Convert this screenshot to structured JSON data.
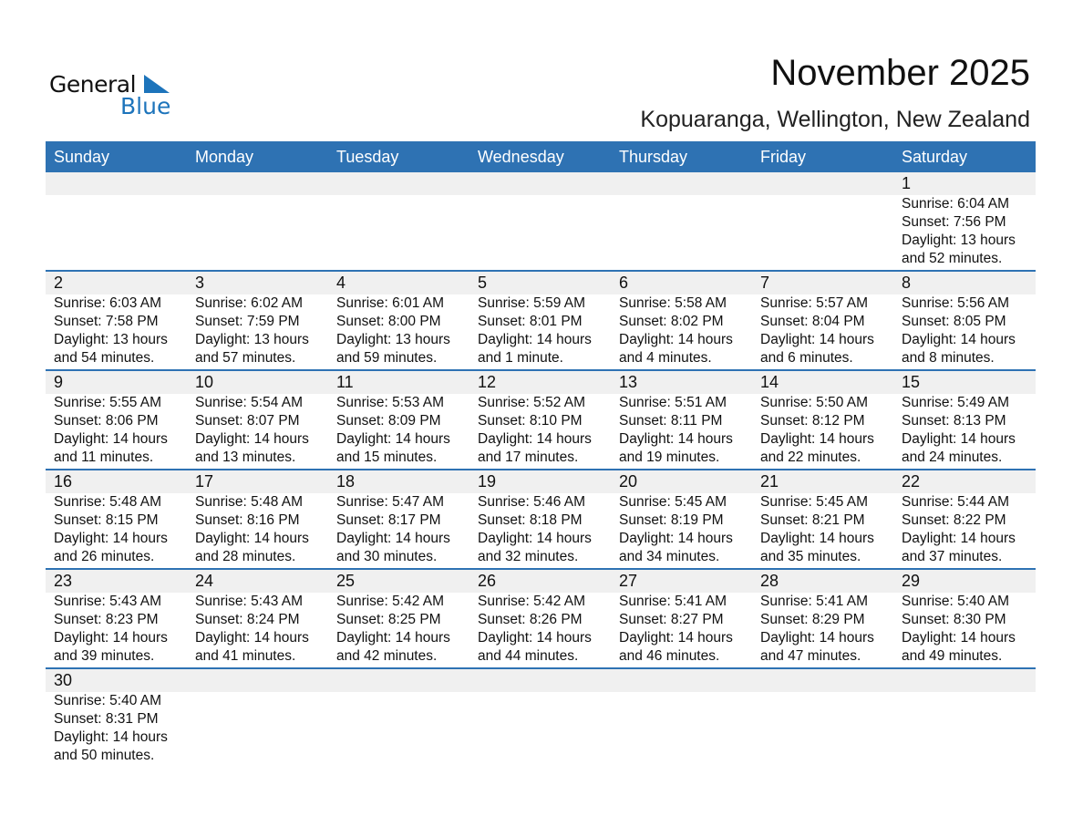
{
  "logo": {
    "text1": "General",
    "text2": "Blue"
  },
  "header": {
    "title": "November 2025",
    "location": "Kopuaranga, Wellington, New Zealand"
  },
  "weekdays": [
    "Sunday",
    "Monday",
    "Tuesday",
    "Wednesday",
    "Thursday",
    "Friday",
    "Saturday"
  ],
  "first_weekday_offset": 6,
  "days": [
    {
      "day": "1",
      "sunrise": "Sunrise: 6:04 AM",
      "sunset": "Sunset: 7:56 PM",
      "daylight": "Daylight: 13 hours",
      "daylight2": "and 52 minutes."
    },
    {
      "day": "2",
      "sunrise": "Sunrise: 6:03 AM",
      "sunset": "Sunset: 7:58 PM",
      "daylight": "Daylight: 13 hours",
      "daylight2": "and 54 minutes."
    },
    {
      "day": "3",
      "sunrise": "Sunrise: 6:02 AM",
      "sunset": "Sunset: 7:59 PM",
      "daylight": "Daylight: 13 hours",
      "daylight2": "and 57 minutes."
    },
    {
      "day": "4",
      "sunrise": "Sunrise: 6:01 AM",
      "sunset": "Sunset: 8:00 PM",
      "daylight": "Daylight: 13 hours",
      "daylight2": "and 59 minutes."
    },
    {
      "day": "5",
      "sunrise": "Sunrise: 5:59 AM",
      "sunset": "Sunset: 8:01 PM",
      "daylight": "Daylight: 14 hours",
      "daylight2": "and 1 minute."
    },
    {
      "day": "6",
      "sunrise": "Sunrise: 5:58 AM",
      "sunset": "Sunset: 8:02 PM",
      "daylight": "Daylight: 14 hours",
      "daylight2": "and 4 minutes."
    },
    {
      "day": "7",
      "sunrise": "Sunrise: 5:57 AM",
      "sunset": "Sunset: 8:04 PM",
      "daylight": "Daylight: 14 hours",
      "daylight2": "and 6 minutes."
    },
    {
      "day": "8",
      "sunrise": "Sunrise: 5:56 AM",
      "sunset": "Sunset: 8:05 PM",
      "daylight": "Daylight: 14 hours",
      "daylight2": "and 8 minutes."
    },
    {
      "day": "9",
      "sunrise": "Sunrise: 5:55 AM",
      "sunset": "Sunset: 8:06 PM",
      "daylight": "Daylight: 14 hours",
      "daylight2": "and 11 minutes."
    },
    {
      "day": "10",
      "sunrise": "Sunrise: 5:54 AM",
      "sunset": "Sunset: 8:07 PM",
      "daylight": "Daylight: 14 hours",
      "daylight2": "and 13 minutes."
    },
    {
      "day": "11",
      "sunrise": "Sunrise: 5:53 AM",
      "sunset": "Sunset: 8:09 PM",
      "daylight": "Daylight: 14 hours",
      "daylight2": "and 15 minutes."
    },
    {
      "day": "12",
      "sunrise": "Sunrise: 5:52 AM",
      "sunset": "Sunset: 8:10 PM",
      "daylight": "Daylight: 14 hours",
      "daylight2": "and 17 minutes."
    },
    {
      "day": "13",
      "sunrise": "Sunrise: 5:51 AM",
      "sunset": "Sunset: 8:11 PM",
      "daylight": "Daylight: 14 hours",
      "daylight2": "and 19 minutes."
    },
    {
      "day": "14",
      "sunrise": "Sunrise: 5:50 AM",
      "sunset": "Sunset: 8:12 PM",
      "daylight": "Daylight: 14 hours",
      "daylight2": "and 22 minutes."
    },
    {
      "day": "15",
      "sunrise": "Sunrise: 5:49 AM",
      "sunset": "Sunset: 8:13 PM",
      "daylight": "Daylight: 14 hours",
      "daylight2": "and 24 minutes."
    },
    {
      "day": "16",
      "sunrise": "Sunrise: 5:48 AM",
      "sunset": "Sunset: 8:15 PM",
      "daylight": "Daylight: 14 hours",
      "daylight2": "and 26 minutes."
    },
    {
      "day": "17",
      "sunrise": "Sunrise: 5:48 AM",
      "sunset": "Sunset: 8:16 PM",
      "daylight": "Daylight: 14 hours",
      "daylight2": "and 28 minutes."
    },
    {
      "day": "18",
      "sunrise": "Sunrise: 5:47 AM",
      "sunset": "Sunset: 8:17 PM",
      "daylight": "Daylight: 14 hours",
      "daylight2": "and 30 minutes."
    },
    {
      "day": "19",
      "sunrise": "Sunrise: 5:46 AM",
      "sunset": "Sunset: 8:18 PM",
      "daylight": "Daylight: 14 hours",
      "daylight2": "and 32 minutes."
    },
    {
      "day": "20",
      "sunrise": "Sunrise: 5:45 AM",
      "sunset": "Sunset: 8:19 PM",
      "daylight": "Daylight: 14 hours",
      "daylight2": "and 34 minutes."
    },
    {
      "day": "21",
      "sunrise": "Sunrise: 5:45 AM",
      "sunset": "Sunset: 8:21 PM",
      "daylight": "Daylight: 14 hours",
      "daylight2": "and 35 minutes."
    },
    {
      "day": "22",
      "sunrise": "Sunrise: 5:44 AM",
      "sunset": "Sunset: 8:22 PM",
      "daylight": "Daylight: 14 hours",
      "daylight2": "and 37 minutes."
    },
    {
      "day": "23",
      "sunrise": "Sunrise: 5:43 AM",
      "sunset": "Sunset: 8:23 PM",
      "daylight": "Daylight: 14 hours",
      "daylight2": "and 39 minutes."
    },
    {
      "day": "24",
      "sunrise": "Sunrise: 5:43 AM",
      "sunset": "Sunset: 8:24 PM",
      "daylight": "Daylight: 14 hours",
      "daylight2": "and 41 minutes."
    },
    {
      "day": "25",
      "sunrise": "Sunrise: 5:42 AM",
      "sunset": "Sunset: 8:25 PM",
      "daylight": "Daylight: 14 hours",
      "daylight2": "and 42 minutes."
    },
    {
      "day": "26",
      "sunrise": "Sunrise: 5:42 AM",
      "sunset": "Sunset: 8:26 PM",
      "daylight": "Daylight: 14 hours",
      "daylight2": "and 44 minutes."
    },
    {
      "day": "27",
      "sunrise": "Sunrise: 5:41 AM",
      "sunset": "Sunset: 8:27 PM",
      "daylight": "Daylight: 14 hours",
      "daylight2": "and 46 minutes."
    },
    {
      "day": "28",
      "sunrise": "Sunrise: 5:41 AM",
      "sunset": "Sunset: 8:29 PM",
      "daylight": "Daylight: 14 hours",
      "daylight2": "and 47 minutes."
    },
    {
      "day": "29",
      "sunrise": "Sunrise: 5:40 AM",
      "sunset": "Sunset: 8:30 PM",
      "daylight": "Daylight: 14 hours",
      "daylight2": "and 49 minutes."
    },
    {
      "day": "30",
      "sunrise": "Sunrise: 5:40 AM",
      "sunset": "Sunset: 8:31 PM",
      "daylight": "Daylight: 14 hours",
      "daylight2": "and 50 minutes."
    }
  ],
  "colors": {
    "header_bg": "#2e72b3",
    "band_bg": "#f0f0f0",
    "logo_blue": "#1d74bb"
  }
}
